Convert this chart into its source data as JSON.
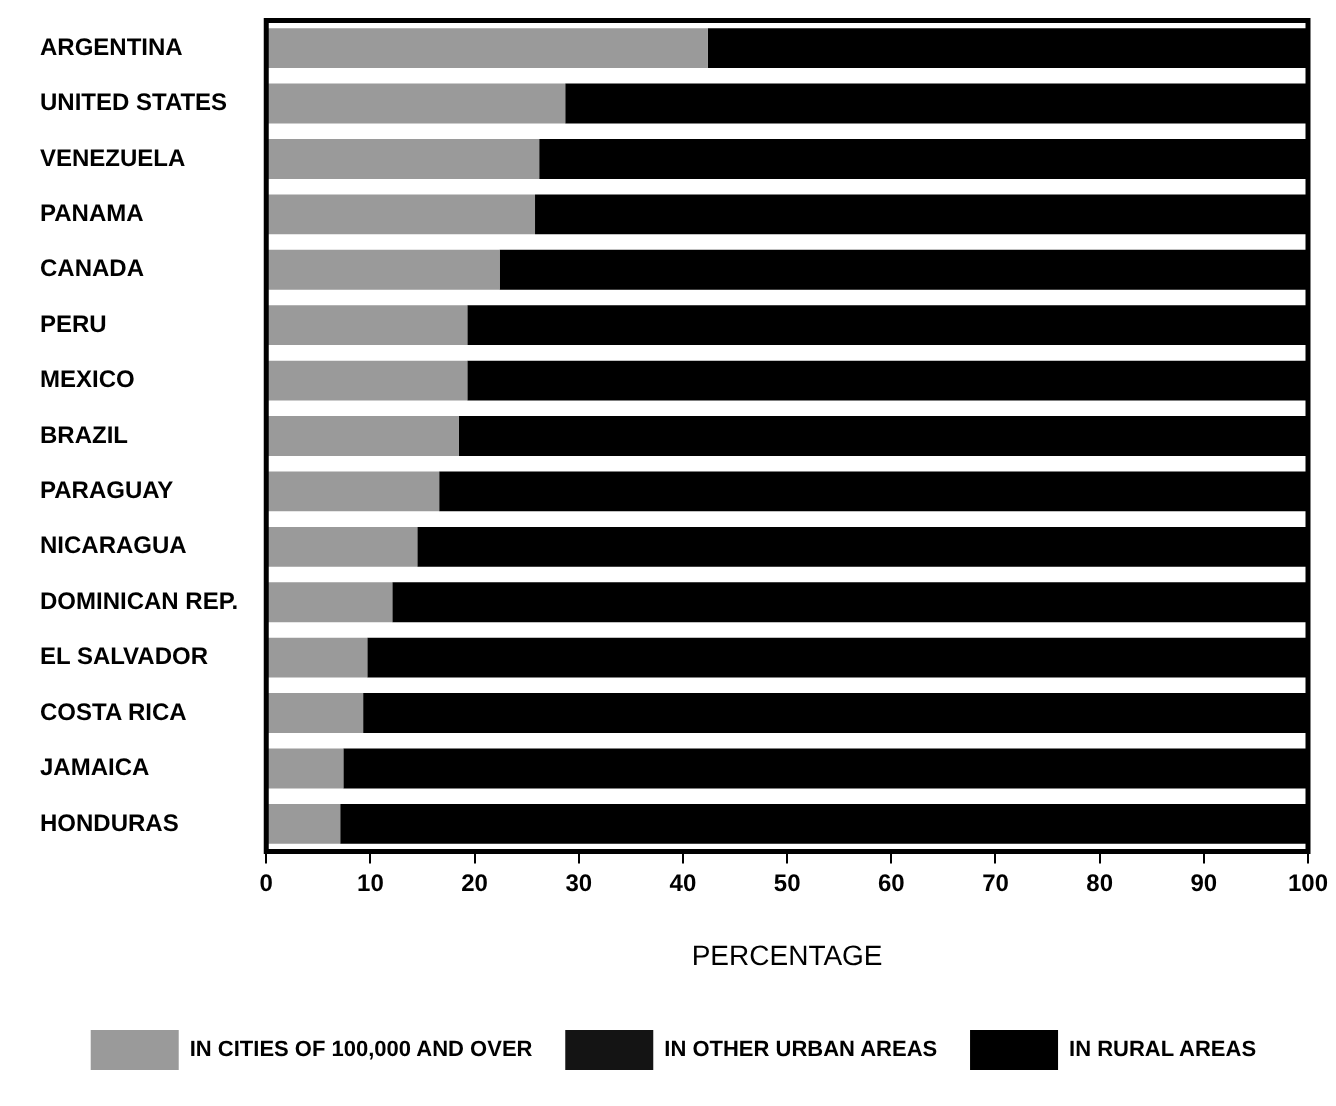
{
  "chart_data": {
    "type": "bar",
    "orientation": "horizontal",
    "stacked": true,
    "xlabel": "PERCENTAGE",
    "categories": [
      "ARGENTINA",
      "UNITED STATES",
      "VENEZUELA",
      "PANAMA",
      "CANADA",
      "PERU",
      "MEXICO",
      "BRAZIL",
      "PARAGUAY",
      "NICARAGUA",
      "DOMINICAN REP.",
      "EL SALVADOR",
      "COSTA RICA",
      "JAMAICA",
      "HONDURAS"
    ],
    "series": [
      {
        "name": "IN CITIES OF 100,000 AND OVER",
        "color": "#9a9a9a",
        "values": [
          42.4,
          28.7,
          26.2,
          25.8,
          22.4,
          19.3,
          19.3,
          18.5,
          16.6,
          14.5,
          12.1,
          9.7,
          9.3,
          7.4,
          7.1
        ]
      },
      {
        "name": "IN OTHER URBAN AREAS",
        "color": "#141414",
        "values": [
          null,
          null,
          null,
          null,
          null,
          null,
          null,
          null,
          null,
          null,
          null,
          null,
          null,
          null,
          null
        ]
      },
      {
        "name": "IN RURAL AREAS",
        "color": "#000000",
        "values": [
          57.6,
          71.3,
          73.8,
          74.2,
          77.6,
          80.7,
          80.7,
          81.5,
          83.4,
          85.5,
          87.9,
          90.3,
          90.7,
          92.6,
          92.9
        ]
      }
    ],
    "xlim": [
      0,
      100
    ],
    "xticks": [
      0,
      10,
      20,
      30,
      40,
      50,
      60,
      70,
      80,
      90,
      100
    ],
    "grid": false,
    "legend": "bottom"
  }
}
